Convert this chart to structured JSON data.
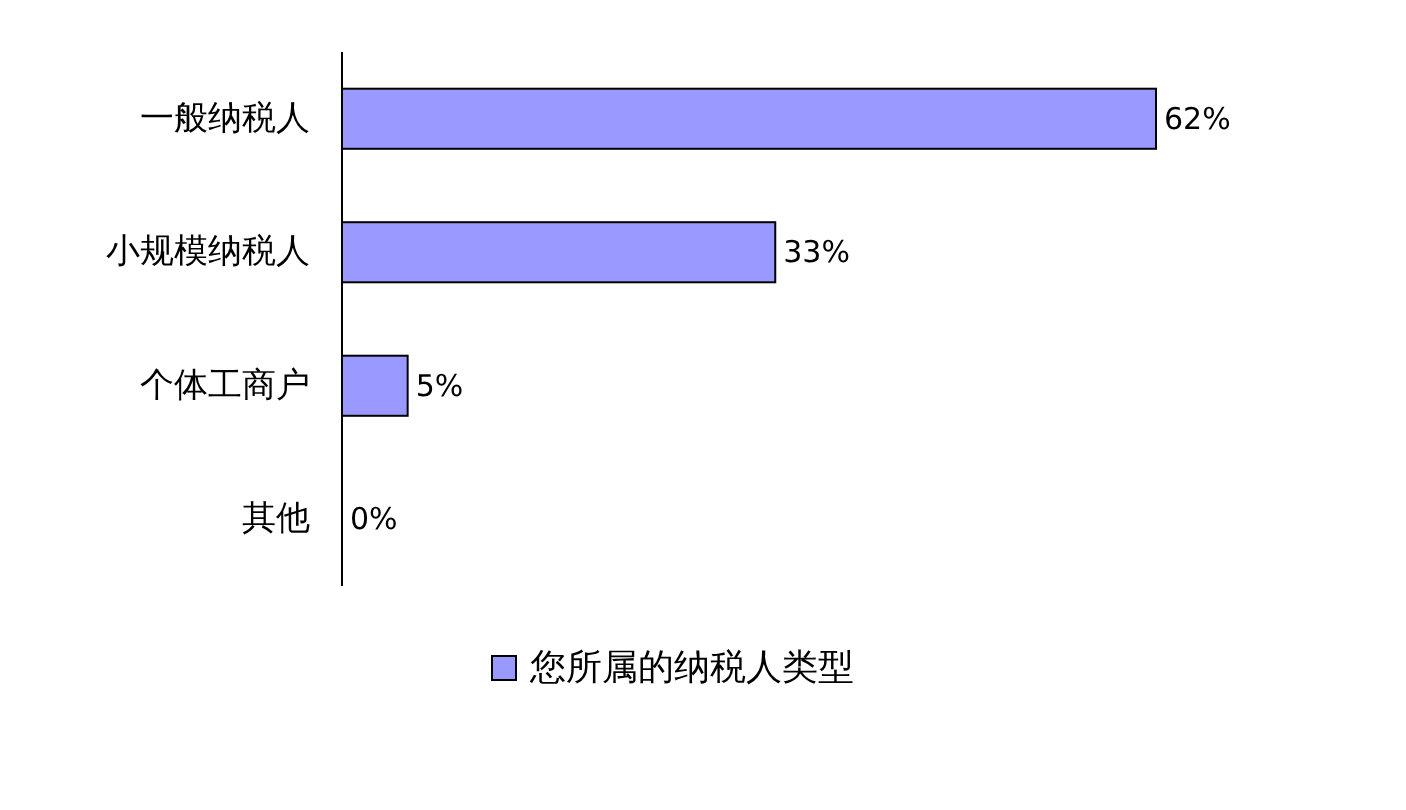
{
  "chart_data": {
    "type": "bar",
    "orientation": "horizontal",
    "categories": [
      "一般纳税人",
      "小规模纳税人",
      "个体工商户",
      "其他"
    ],
    "series": [
      {
        "name": "您所属的纳税人类型",
        "color": "#9999ff",
        "values": [
          62,
          33,
          5,
          0
        ],
        "value_labels": [
          "62%",
          "33%",
          "5%",
          "0%"
        ]
      }
    ],
    "legend": "bottom"
  }
}
